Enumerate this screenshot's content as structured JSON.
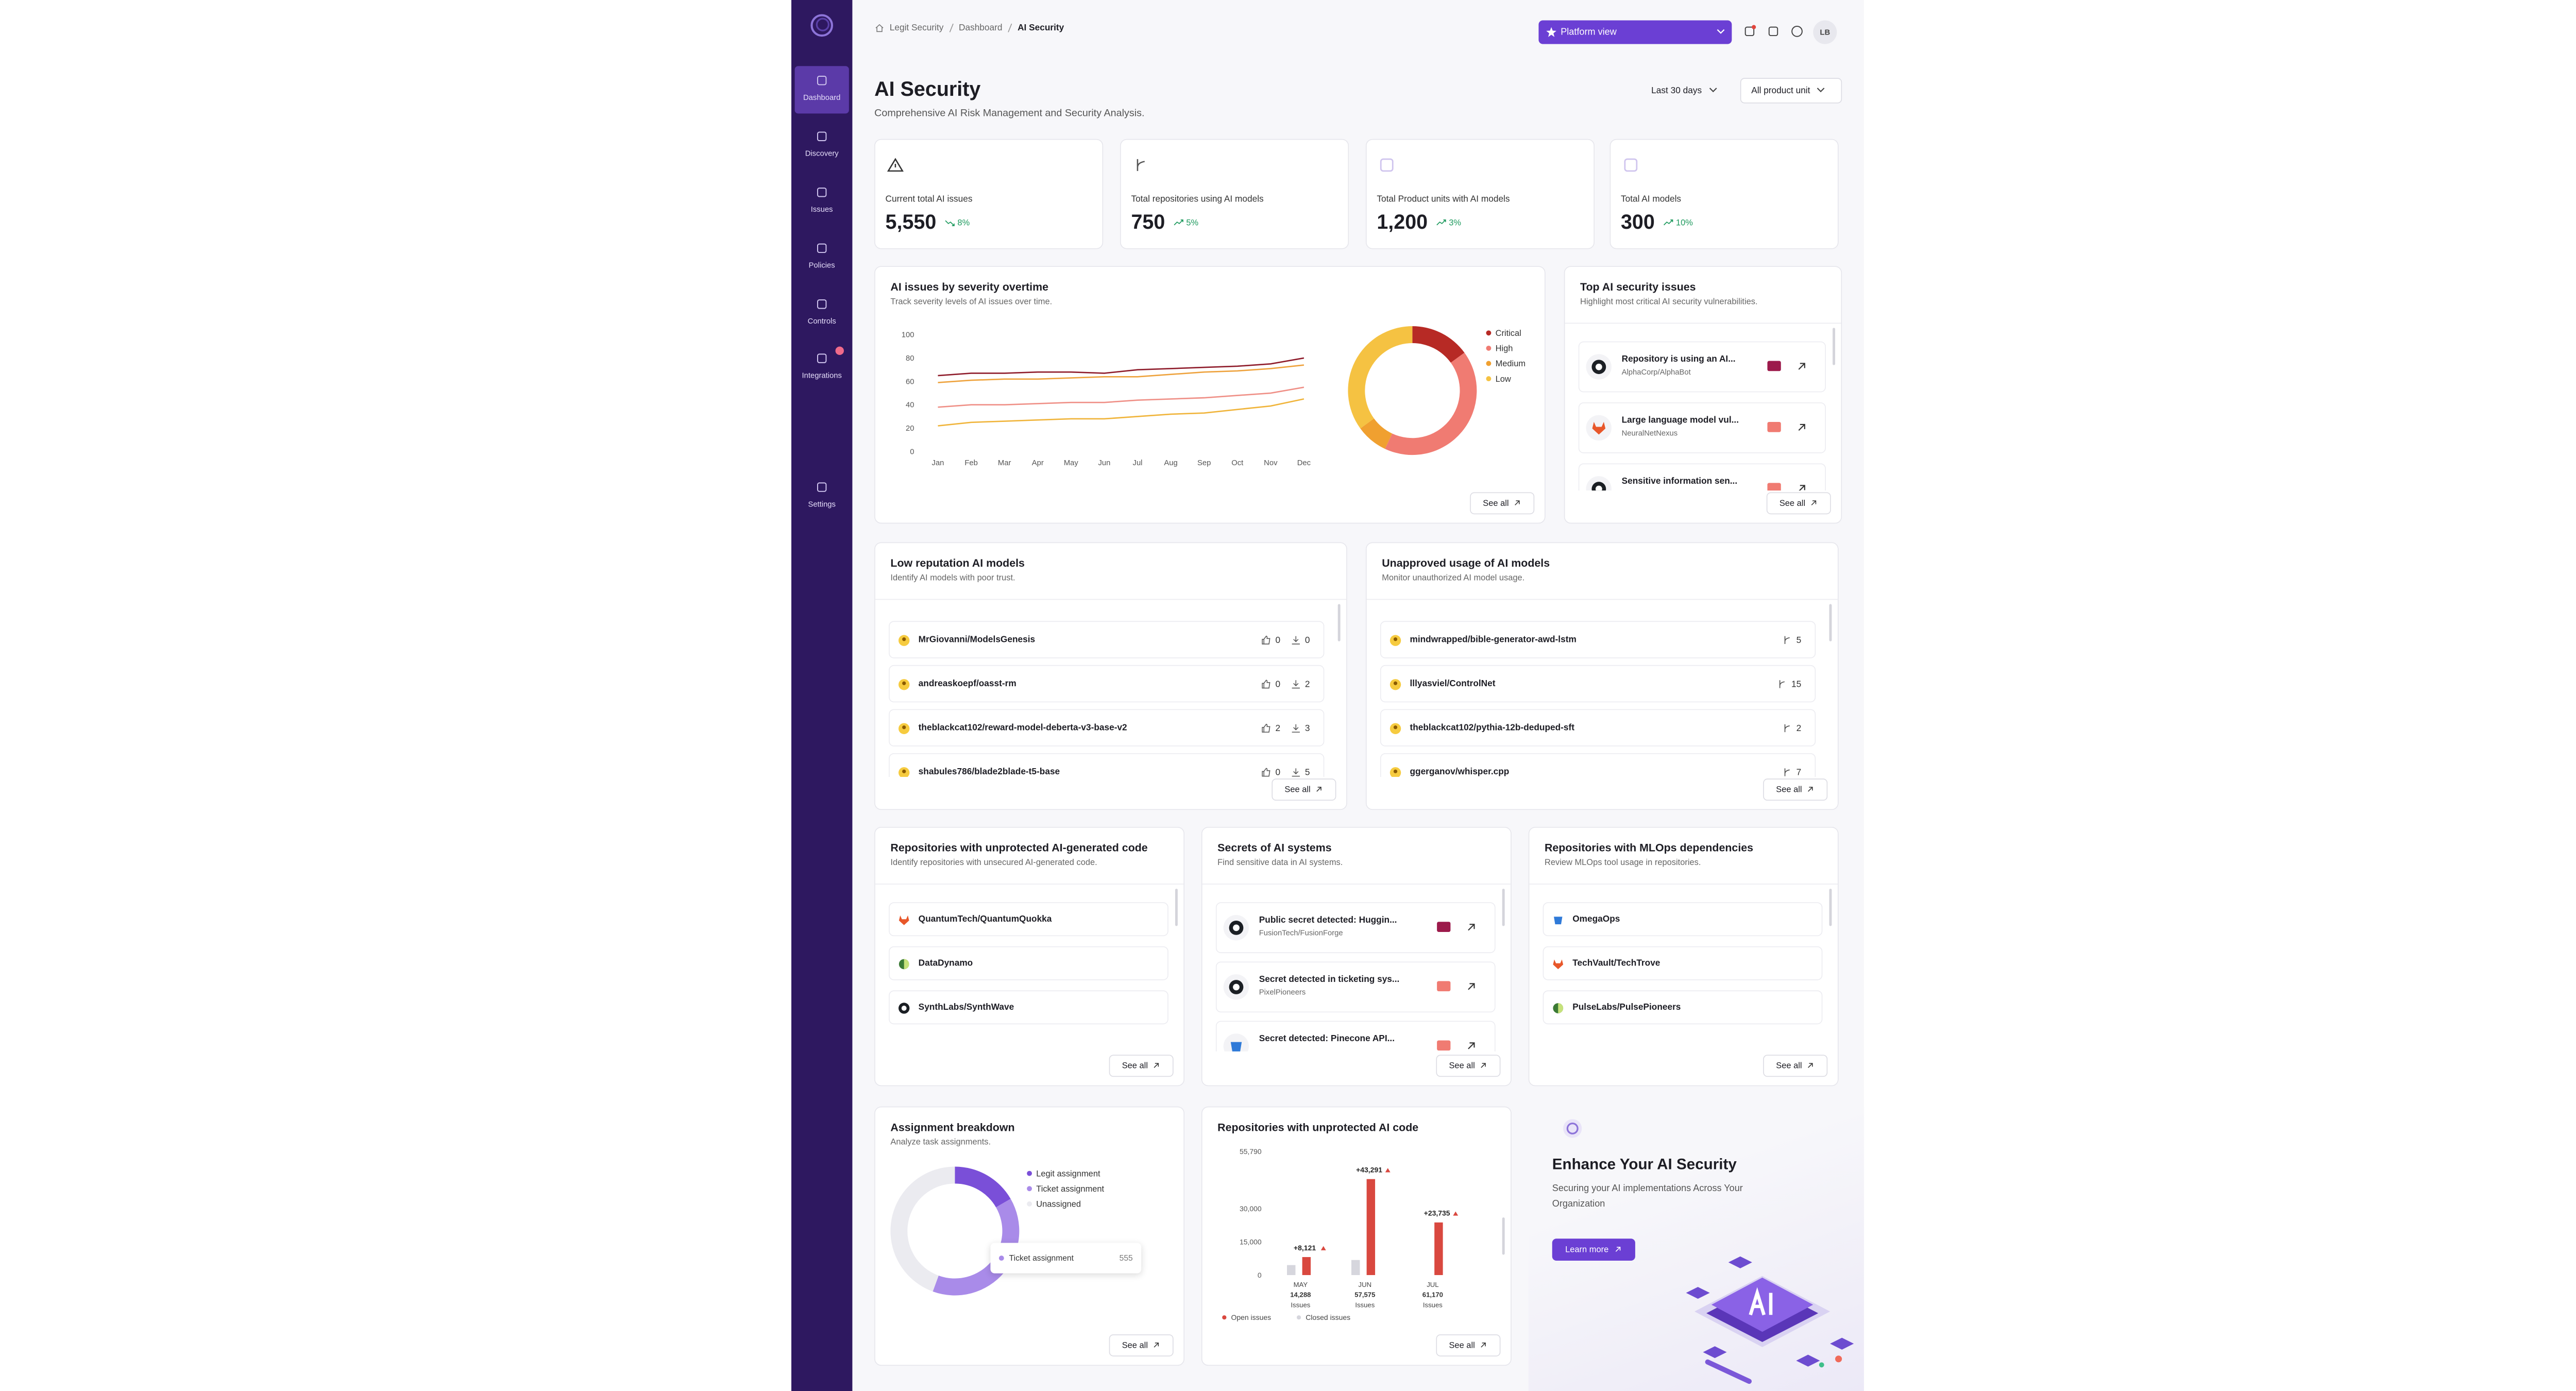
{
  "sidebar": {
    "items": [
      "Dashboard",
      "Discovery",
      "Issues",
      "Policies",
      "Controls",
      "Integrations",
      "Settings"
    ],
    "active": 0
  },
  "topbar": {
    "breadcrumb": [
      "Legit Security",
      "Dashboard",
      "AI Security"
    ],
    "view_button": "Platform view",
    "avatar": "LB"
  },
  "header": {
    "title": "AI Security",
    "subtitle": "Comprehensive AI Risk Management and Security Analysis.",
    "filters": [
      "Last 30 days",
      "All product unit"
    ]
  },
  "stats": [
    {
      "label": "Current total AI issues",
      "value": "5,550",
      "change": "8%",
      "trend": "down"
    },
    {
      "label": "Total repositories using AI models",
      "value": "750",
      "change": "5%",
      "trend": "up"
    },
    {
      "label": "Total Product units with AI models",
      "value": "1,200",
      "change": "3%",
      "trend": "up"
    },
    {
      "label": "Total AI models",
      "value": "300",
      "change": "10%",
      "trend": "up"
    }
  ],
  "see_all": "See all",
  "top_issues": {
    "title": "Top AI security issues",
    "subtitle": "Highlight most critical AI security vulnerabilities.",
    "items": [
      {
        "title": "Repository is using an AI...",
        "repo": "AlphaCorp/AlphaBot",
        "source": "github",
        "severity": "critical"
      },
      {
        "title": "Large language model vul...",
        "repo": "NeuralNetNexus",
        "source": "gitlab",
        "severity": "high"
      },
      {
        "title": "Sensitive information sen...",
        "repo": "",
        "source": "github",
        "severity": "high"
      }
    ]
  },
  "low_reputation": {
    "title": "Low reputation AI models",
    "subtitle": "Identify AI models with poor trust.",
    "items": [
      {
        "name": "MrGiovanni/ModelsGenesis",
        "likes": 0,
        "downloads": 0
      },
      {
        "name": "andreaskoepf/oasst-rm",
        "likes": 0,
        "downloads": 2
      },
      {
        "name": "theblackcat102/reward-model-deberta-v3-base-v2",
        "likes": 2,
        "downloads": 3
      },
      {
        "name": "shabules786/blade2blade-t5-base",
        "likes": 0,
        "downloads": 5
      }
    ]
  },
  "unapproved": {
    "title": "Unapproved usage of AI models",
    "subtitle": "Monitor unauthorized AI model usage.",
    "items": [
      {
        "name": "mindwrapped/bible-generator-awd-lstm",
        "count": 5
      },
      {
        "name": "lllyasviel/ControlNet",
        "count": 15
      },
      {
        "name": "theblackcat102/pythia-12b-deduped-sft",
        "count": 2
      },
      {
        "name": "ggerganov/whisper.cpp",
        "count": 7
      }
    ]
  },
  "unprotected_repos": {
    "title": "Repositories with unprotected AI-generated code",
    "subtitle": "Identify repositories with unsecured AI-generated code.",
    "items": [
      {
        "name": "QuantumTech/QuantumQuokka",
        "source": "gitlab"
      },
      {
        "name": "DataDynamo",
        "source": "other"
      },
      {
        "name": "SynthLabs/SynthWave",
        "source": "github"
      }
    ]
  },
  "secrets": {
    "title": "Secrets of AI systems",
    "subtitle": "Find sensitive data in AI systems.",
    "items": [
      {
        "title": "Public secret detected: Huggin...",
        "repo": "FusionTech/FusionForge",
        "source": "github",
        "severity": "critical"
      },
      {
        "title": "Secret detected in ticketing sys...",
        "repo": "PixelPioneers",
        "source": "github",
        "severity": "high"
      },
      {
        "title": "Secret detected: Pinecone API...",
        "repo": "",
        "source": "azure",
        "severity": "high"
      }
    ]
  },
  "mlops": {
    "title": "Repositories with MLOps dependencies",
    "subtitle": "Review MLOps tool usage in repositories.",
    "items": [
      {
        "name": "OmegaOps",
        "source": "azure"
      },
      {
        "name": "TechVault/TechTrove",
        "source": "gitlab"
      },
      {
        "name": "PulseLabs/PulsePioneers",
        "source": "other"
      }
    ]
  },
  "promo": {
    "title": "Enhance Your AI Security",
    "subtitle": "Securing your AI implementations Across Your Organization",
    "button": "Learn more"
  },
  "chart_data": [
    {
      "type": "line",
      "title": "AI issues by severity overtime",
      "subtitle": "Track severity levels of AI issues over time.",
      "categories": [
        "Jan",
        "Feb",
        "Mar",
        "Apr",
        "May",
        "Jun",
        "Jul",
        "Aug",
        "Sep",
        "Oct",
        "Nov",
        "Dec"
      ],
      "series": [
        {
          "color": "#8e1b2a",
          "values": [
            65,
            67,
            67,
            68,
            68,
            67,
            70,
            71,
            72,
            73,
            75,
            80
          ]
        },
        {
          "color": "#eea23c",
          "values": [
            59,
            61,
            62,
            62,
            63,
            64,
            64,
            66,
            68,
            69,
            71,
            74
          ]
        },
        {
          "color": "#ef8f86",
          "values": [
            38,
            40,
            40,
            41,
            42,
            42,
            44,
            45,
            46,
            48,
            50,
            55
          ]
        },
        {
          "color": "#f0b43a",
          "values": [
            22,
            25,
            26,
            27,
            28,
            28,
            30,
            32,
            33,
            36,
            39,
            45
          ]
        }
      ],
      "ylim": [
        0,
        100
      ],
      "yticks": [
        0,
        20,
        40,
        60,
        80,
        100
      ]
    },
    {
      "type": "pie",
      "categories": [
        "Critical",
        "High",
        "Medium",
        "Low"
      ],
      "values": [
        15,
        42,
        8,
        35
      ],
      "colors": [
        "#b72a25",
        "#f07b72",
        "#f0a030",
        "#f5c242"
      ]
    },
    {
      "type": "pie",
      "title": "Assignment breakdown",
      "subtitle": "Analyze task assignments.",
      "categories": [
        "Legit assignment",
        "Ticket assignment",
        "Unassigned"
      ],
      "values": [
        238,
        555,
        634
      ],
      "colors": [
        "#7a4fd8",
        "#a98be9",
        "#ebebf0"
      ],
      "tooltip_index": 1
    },
    {
      "type": "bar",
      "title": "Repositories with unprotected AI code",
      "categories": [
        "MAY",
        "JUN",
        "JUL"
      ],
      "category_totals": [
        "14,288",
        "57,575",
        "61,170"
      ],
      "category_unit": "Issues",
      "series": [
        {
          "name": "Open issues",
          "color": "#d9483f",
          "values": [
            8121,
            43291,
            23735
          ],
          "value_labels": [
            "+8,121",
            "+43,291",
            "+23,735"
          ]
        },
        {
          "name": "Closed issues",
          "color": "#d6d6dd",
          "values": [
            4500,
            6800,
            null
          ]
        }
      ],
      "ylim": [
        0,
        55790
      ],
      "yticks": [
        0,
        {
          "value": 15000,
          "label": "15,000"
        },
        {
          "value": 30000,
          "label": "30,000"
        },
        {
          "value": 55790,
          "label": "55,790"
        }
      ]
    }
  ]
}
